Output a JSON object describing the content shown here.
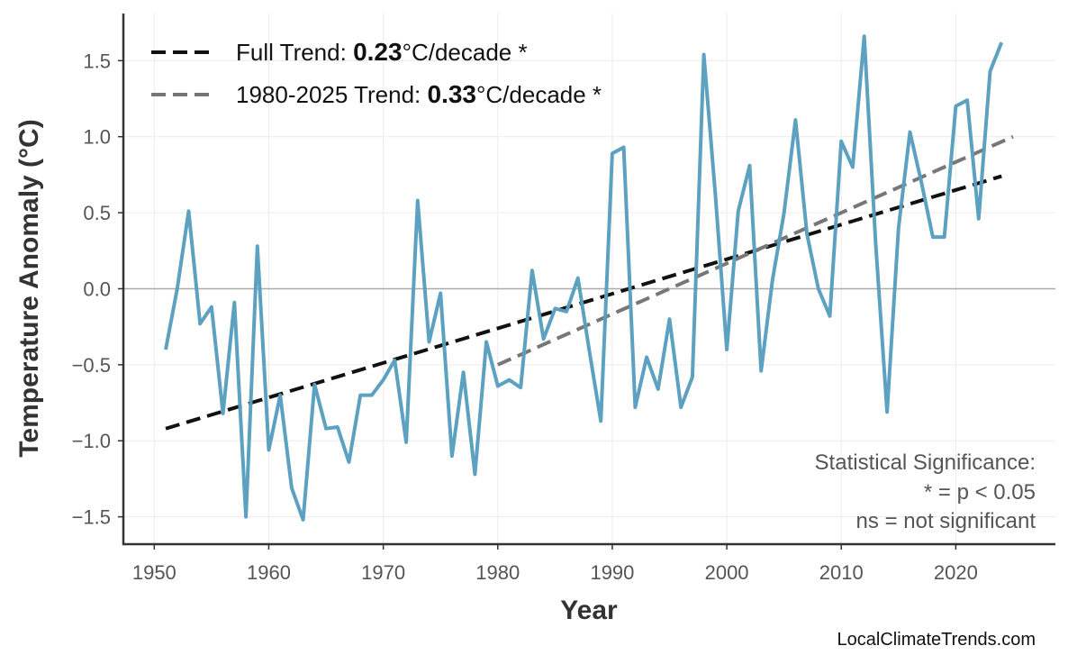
{
  "chart_data": {
    "type": "line",
    "title": "",
    "xlabel": "Year",
    "ylabel": "Temperature Anomaly (°C)",
    "xlim": [
      1947.3,
      2028.7
    ],
    "ylim": [
      -1.68,
      1.81
    ],
    "grid": true,
    "legend_position": "top-left",
    "xticks": [
      1950,
      1960,
      1970,
      1980,
      1990,
      2000,
      2010,
      2020
    ],
    "yticks": [
      -1.5,
      -1.0,
      -0.5,
      0.0,
      0.5,
      1.0,
      1.5
    ],
    "ytick_labels": [
      "−1.5",
      "−1.0",
      "−0.5",
      "0.0",
      "0.5",
      "1.0",
      "1.5"
    ],
    "series": [
      {
        "color": "#5a9fc0",
        "x": [
          1951,
          1952,
          1953,
          1954,
          1955,
          1956,
          1957,
          1958,
          1959,
          1960,
          1961,
          1962,
          1963,
          1964,
          1965,
          1966,
          1967,
          1968,
          1969,
          1970,
          1971,
          1972,
          1973,
          1974,
          1975,
          1976,
          1977,
          1978,
          1979,
          1980,
          1981,
          1982,
          1983,
          1984,
          1985,
          1986,
          1987,
          1988,
          1989,
          1990,
          1991,
          1992,
          1993,
          1994,
          1995,
          1996,
          1997,
          1998,
          1999,
          2000,
          2001,
          2002,
          2003,
          2004,
          2005,
          2006,
          2007,
          2008,
          2009,
          2010,
          2011,
          2012,
          2013,
          2014,
          2015,
          2016,
          2017,
          2018,
          2019,
          2020,
          2021,
          2022,
          2023,
          2024
        ],
        "y": [
          -0.4,
          0.0,
          0.51,
          -0.23,
          -0.12,
          -0.82,
          -0.09,
          -1.5,
          0.28,
          -1.06,
          -0.7,
          -1.31,
          -1.52,
          -0.63,
          -0.92,
          -0.91,
          -1.14,
          -0.7,
          -0.7,
          -0.6,
          -0.47,
          -1.01,
          0.58,
          -0.35,
          -0.03,
          -1.1,
          -0.55,
          -1.22,
          -0.35,
          -0.64,
          -0.6,
          -0.65,
          0.12,
          -0.33,
          -0.13,
          -0.15,
          0.07,
          -0.41,
          -0.87,
          0.89,
          0.93,
          -0.78,
          -0.45,
          -0.66,
          -0.2,
          -0.78,
          -0.58,
          1.54,
          0.62,
          -0.4,
          0.51,
          0.81,
          -0.54,
          0.06,
          0.5,
          1.11,
          0.36,
          0.0,
          -0.18,
          0.97,
          0.8,
          1.66,
          0.3,
          -0.81,
          0.4,
          1.03,
          0.7,
          0.34,
          0.34,
          1.2,
          1.24,
          0.46,
          1.43,
          1.62
        ]
      }
    ],
    "trends": [
      {
        "label_prefix": "Full Trend: ",
        "value": "0.23",
        "label_suffix": "°C/decade *",
        "color": "#111111",
        "x": [
          1951,
          2024
        ],
        "y": [
          -0.92,
          0.74
        ]
      },
      {
        "label_prefix": "1980-2025 Trend: ",
        "value": "0.33",
        "label_suffix": "°C/decade *",
        "color": "#777777",
        "x": [
          1980,
          2025
        ],
        "y": [
          -0.5,
          1.0
        ]
      }
    ],
    "significance_note": [
      "Statistical Significance:",
      "* = p < 0.05",
      "ns = not significant"
    ],
    "source": "LocalClimateTrends.com"
  }
}
